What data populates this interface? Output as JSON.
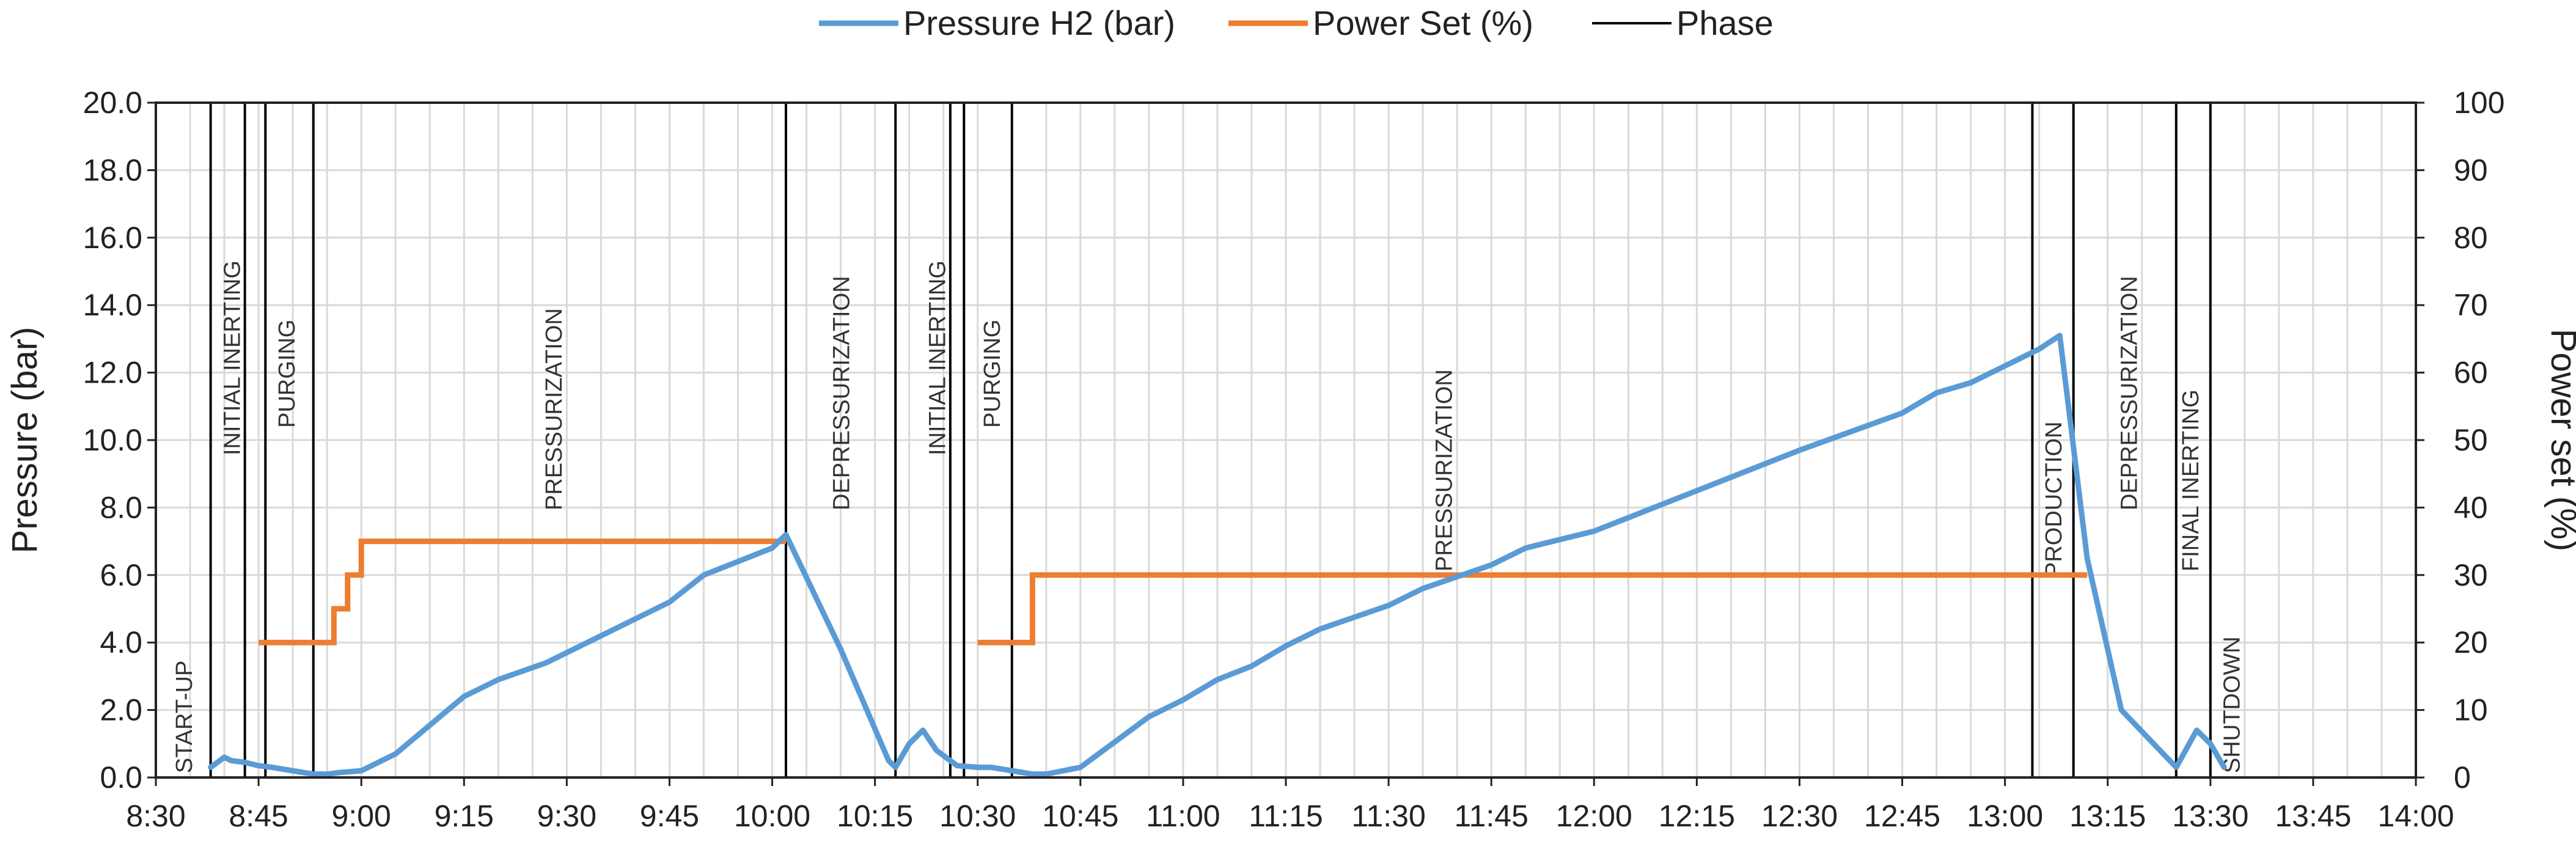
{
  "chart_data": {
    "type": "line",
    "xlabel": "",
    "ylabel_left": "Pressure (bar)",
    "ylabel_right": "Power set (%)",
    "ylim_left": [
      0,
      20
    ],
    "ylim_right": [
      0,
      100
    ],
    "xlim": [
      "8:30",
      "14:00"
    ],
    "x_ticks": [
      "8:30",
      "8:45",
      "9:00",
      "9:15",
      "9:30",
      "9:45",
      "10:00",
      "10:15",
      "10:30",
      "10:45",
      "11:00",
      "11:15",
      "11:30",
      "11:45",
      "12:00",
      "12:15",
      "12:30",
      "12:45",
      "13:00",
      "13:15",
      "13:30",
      "13:45",
      "14:00"
    ],
    "y_ticks_left": [
      "0.0",
      "2.0",
      "4.0",
      "6.0",
      "8.0",
      "10.0",
      "12.0",
      "14.0",
      "16.0",
      "18.0",
      "20.0"
    ],
    "y_ticks_right": [
      "0",
      "10",
      "20",
      "30",
      "40",
      "50",
      "60",
      "70",
      "80",
      "90",
      "100"
    ],
    "grid": true,
    "legend_position": "top-center",
    "legend": [
      {
        "label": "Pressure H2 (bar)",
        "color": "#5b9bd5",
        "kind": "line"
      },
      {
        "label": "Power Set (%)",
        "color": "#ed7d31",
        "kind": "line"
      },
      {
        "label": "Phase",
        "color": "#000000",
        "kind": "line"
      }
    ],
    "series": [
      {
        "name": "Pressure H2 (bar)",
        "axis": "left",
        "color": "#5b9bd5",
        "x": [
          "8:38",
          "8:40",
          "8:41",
          "8:43",
          "8:45",
          "8:47",
          "8:50",
          "8:53",
          "8:55",
          "8:57",
          "9:00",
          "9:05",
          "9:15",
          "9:20",
          "9:27",
          "9:35",
          "9:45",
          "9:50",
          "10:00",
          "10:02",
          "10:10",
          "10:17",
          "10:18",
          "10:20",
          "10:22",
          "10:24",
          "10:27",
          "10:30",
          "10:32",
          "10:35",
          "10:38",
          "10:40",
          "10:45",
          "10:55",
          "11:00",
          "11:05",
          "11:10",
          "11:15",
          "11:20",
          "11:30",
          "11:35",
          "11:45",
          "11:50",
          "12:00",
          "12:15",
          "12:30",
          "12:45",
          "12:50",
          "12:55",
          "13:00",
          "13:05",
          "13:08",
          "13:12",
          "13:17",
          "13:25",
          "13:28",
          "13:30",
          "13:32"
        ],
        "values": [
          0.3,
          0.6,
          0.5,
          0.45,
          0.35,
          0.3,
          0.2,
          0.1,
          0.1,
          0.15,
          0.2,
          0.7,
          2.4,
          2.9,
          3.4,
          4.2,
          5.2,
          6.0,
          6.8,
          7.2,
          3.8,
          0.5,
          0.3,
          1.0,
          1.4,
          0.8,
          0.35,
          0.3,
          0.3,
          0.2,
          0.1,
          0.1,
          0.3,
          1.8,
          2.3,
          2.9,
          3.3,
          3.9,
          4.4,
          5.1,
          5.6,
          6.3,
          6.8,
          7.3,
          8.5,
          9.7,
          10.8,
          11.4,
          11.7,
          12.2,
          12.7,
          13.1,
          6.5,
          2.0,
          0.3,
          1.4,
          1.0,
          0.3
        ]
      },
      {
        "name": "Power Set (%)",
        "axis": "right",
        "color": "#ed7d31",
        "segments": [
          {
            "x": [
              "8:45",
              "8:56",
              "8:56",
              "8:58",
              "8:58",
              "9:00",
              "9:00",
              "10:02"
            ],
            "values": [
              20,
              20,
              25,
              25,
              30,
              30,
              35,
              35
            ]
          },
          {
            "x": [
              "10:30",
              "10:38",
              "10:38",
              "13:12"
            ],
            "values": [
              20,
              20,
              30,
              30
            ]
          }
        ]
      }
    ],
    "phase_lines": [
      "8:38",
      "8:43",
      "8:46",
      "8:53",
      "10:02",
      "10:18",
      "10:26",
      "10:28",
      "10:35",
      "13:04",
      "13:10",
      "13:25",
      "13:30"
    ],
    "phase_labels": [
      {
        "text": "START-UP",
        "at": "8:34",
        "pos": "bottom"
      },
      {
        "text": "INITIAL INERTING",
        "at": "8:41",
        "pos": "mid-high"
      },
      {
        "text": "PURGING",
        "at": "8:49",
        "pos": "high"
      },
      {
        "text": "PRESSURIZATION",
        "at": "9:28",
        "pos": "mid"
      },
      {
        "text": "DEPRESSURIZATION",
        "at": "10:10",
        "pos": "mid"
      },
      {
        "text": "INITIAL INERTING",
        "at": "10:24",
        "pos": "mid-high"
      },
      {
        "text": "PURGING",
        "at": "10:32",
        "pos": "high"
      },
      {
        "text": "PRESSURIZATION",
        "at": "11:38",
        "pos": "mid-low"
      },
      {
        "text": "PRODUCTION",
        "at": "13:07",
        "pos": "low"
      },
      {
        "text": "DEPRESSURIZATION",
        "at": "13:18",
        "pos": "mid"
      },
      {
        "text": "FINAL INERTING",
        "at": "13:27",
        "pos": "mid-low"
      },
      {
        "text": "SHUTDOWN",
        "at": "13:33",
        "pos": "bottom"
      }
    ]
  }
}
